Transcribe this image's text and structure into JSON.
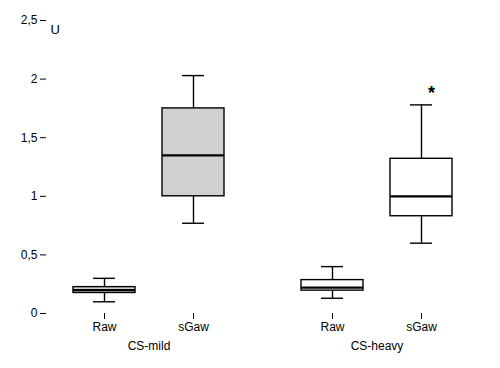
{
  "chart_data": {
    "type": "box",
    "categories": [
      "Raw",
      "sGaw",
      "Raw",
      "sGaw"
    ],
    "groups": [
      "CS-mild",
      "CS-mild",
      "CS-heavy",
      "CS-heavy"
    ],
    "whislo": [
      0.1,
      0.77,
      0.13,
      0.6
    ],
    "q1": [
      0.175,
      1.0,
      0.195,
      0.83
    ],
    "med": [
      0.2,
      1.35,
      0.22,
      1.0
    ],
    "q3": [
      0.225,
      1.75,
      0.285,
      1.32
    ],
    "whishi": [
      0.3,
      2.03,
      0.4,
      1.78
    ],
    "colors": [
      "#d0d0d0",
      "#d0d0d0",
      "#ffffff",
      "#ffffff"
    ],
    "ylim": [
      0,
      2.5
    ],
    "yticks": [
      0,
      {
        "value": 0.5,
        "label": "0,5"
      },
      1,
      {
        "value": 1.5,
        "label": "1,5"
      },
      2,
      {
        "value": 2.5,
        "label": "2,5"
      }
    ],
    "annotations": [
      {
        "text": "U"
      },
      {
        "text": "*",
        "group": "CS-heavy",
        "category": "sGaw",
        "y": 1.83
      }
    ],
    "grid": false
  }
}
